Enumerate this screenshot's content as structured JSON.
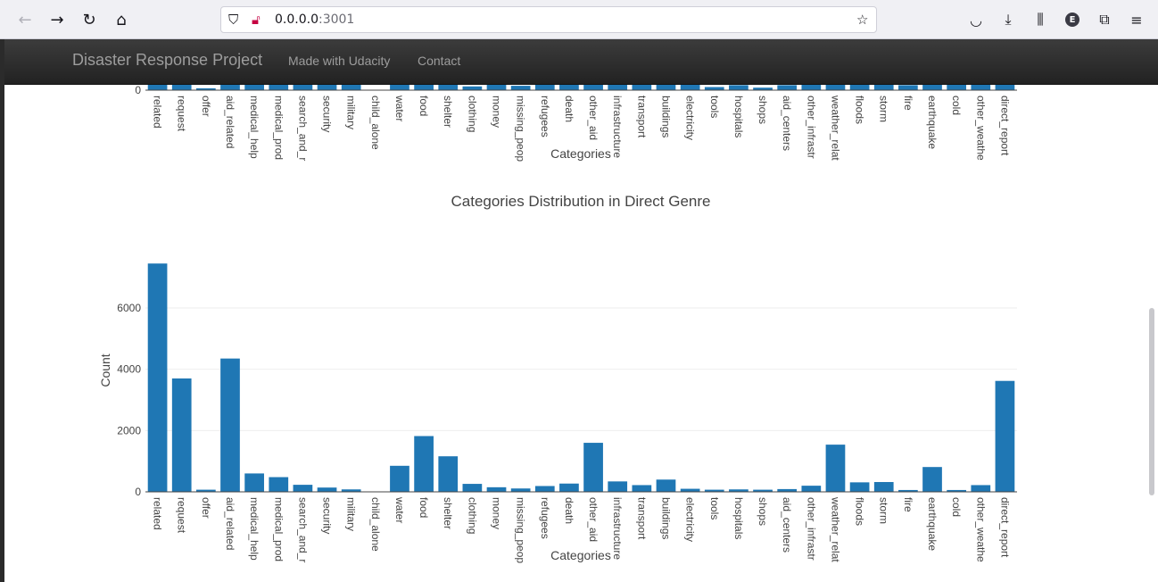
{
  "browser": {
    "url_host": "0.0.0.0",
    "url_port": ":3001",
    "icons": {
      "back": "back-arrow-icon",
      "forward": "forward-arrow-icon",
      "reload": "reload-icon",
      "home": "home-icon",
      "shield": "shield-icon",
      "lock": "insecure-lock-icon",
      "bookmark": "star-icon",
      "pocket": "pocket-icon",
      "downloads": "download-icon",
      "library": "library-icon",
      "profile": "E",
      "extensions": "puzzle-icon",
      "menu": "hamburger-menu-icon"
    }
  },
  "navbar": {
    "brand": "Disaster Response Project",
    "links": [
      "Made with Udacity",
      "Contact"
    ]
  },
  "colors": {
    "bar": "#1f77b4",
    "navbar": "#222222",
    "grid": "#eeeeee"
  },
  "chart_data": [
    {
      "type": "bar",
      "title": "",
      "xlabel": "Categories",
      "ylabel": "",
      "partially_visible": true,
      "categories": [
        "related",
        "request",
        "offer",
        "aid_related",
        "medical_help",
        "medical_prod",
        "search_and_r",
        "security",
        "military",
        "child_alone",
        "water",
        "food",
        "shelter",
        "clothing",
        "money",
        "missing_peop",
        "refugees",
        "death",
        "other_aid",
        "infrastructure",
        "transport",
        "buildings",
        "electricity",
        "tools",
        "hospitals",
        "shops",
        "aid_centers",
        "other_infrastru",
        "weather_relat",
        "floods",
        "storm",
        "fire",
        "earthquake",
        "cold",
        "other_weathe",
        "direct_report"
      ],
      "y_ticks": [
        "0"
      ]
    },
    {
      "type": "bar",
      "title": "Categories Distribution in Direct Genre",
      "xlabel": "Categories",
      "ylabel": "Count",
      "ylim": [
        0,
        7800
      ],
      "y_ticks": [
        "0",
        "2000",
        "4000",
        "6000"
      ],
      "y_tick_values": [
        0,
        2000,
        4000,
        6000
      ],
      "grid": true,
      "categories": [
        "related",
        "request",
        "offer",
        "aid_related",
        "medical_help",
        "medical_prod",
        "search_and_r",
        "security",
        "military",
        "child_alone",
        "water",
        "food",
        "shelter",
        "clothing",
        "money",
        "missing_peop",
        "refugees",
        "death",
        "other_aid",
        "infrastructure",
        "transport",
        "buildings",
        "electricity",
        "tools",
        "hospitals",
        "shops",
        "aid_centers",
        "other_infrastru",
        "weather_relat",
        "floods",
        "storm",
        "fire",
        "earthquake",
        "cold",
        "other_weathe",
        "direct_report"
      ],
      "values": [
        7450,
        3700,
        70,
        4350,
        600,
        480,
        230,
        140,
        80,
        0,
        850,
        1820,
        1160,
        260,
        150,
        110,
        190,
        270,
        1600,
        340,
        220,
        400,
        100,
        70,
        80,
        70,
        90,
        200,
        1540,
        310,
        320,
        60,
        810,
        60,
        220,
        3620
      ]
    }
  ]
}
